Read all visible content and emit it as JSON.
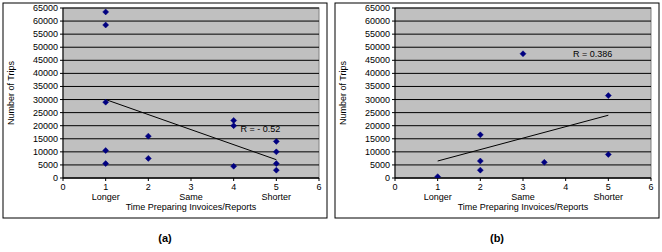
{
  "chart_data": [
    {
      "type": "scatter",
      "title": "(a)",
      "x_label": "Time Preparing Invoices/Reports",
      "y_label": "Number of Trips",
      "x": [
        1,
        1,
        1,
        1,
        1,
        2,
        2,
        4,
        4,
        4,
        5,
        5,
        5,
        5
      ],
      "values": [
        63500,
        58500,
        29000,
        10500,
        5500,
        16000,
        7500,
        22000,
        20000,
        4500,
        14000,
        10000,
        5500,
        3000
      ],
      "color": "#000080",
      "marker": "diamond",
      "trend": {
        "x": [
          1,
          5
        ],
        "values": [
          30000,
          7000
        ]
      },
      "annotation": "R = - 0.52",
      "xlim": [
        0,
        6
      ],
      "xticks": [
        0,
        1,
        2,
        3,
        4,
        5,
        6
      ],
      "x_category_labels": [
        {
          "value": 1,
          "label": "Longer"
        },
        {
          "value": 3,
          "label": "Same"
        },
        {
          "value": 5,
          "label": "Shorter"
        }
      ],
      "ylim": [
        0,
        65000
      ],
      "yticks": [
        0,
        5000,
        10000,
        15000,
        20000,
        25000,
        30000,
        35000,
        40000,
        45000,
        50000,
        55000,
        60000,
        65000
      ],
      "grid": true
    },
    {
      "type": "scatter",
      "title": "(b)",
      "x_label": "Time Preparing Invoices/Reports",
      "y_label": "Number of Trips",
      "x": [
        1,
        2,
        2,
        2,
        3,
        3.5,
        5,
        5
      ],
      "values": [
        500,
        16500,
        6500,
        3000,
        47500,
        6000,
        31500,
        9000
      ],
      "color": "#000080",
      "marker": "diamond",
      "trend": {
        "x": [
          1,
          5
        ],
        "values": [
          6500,
          24000
        ]
      },
      "annotation": "R = 0.386",
      "xlim": [
        0,
        6
      ],
      "xticks": [
        0,
        1,
        2,
        3,
        4,
        5,
        6
      ],
      "x_category_labels": [
        {
          "value": 1,
          "label": "Longer"
        },
        {
          "value": 3,
          "label": "Same"
        },
        {
          "value": 5,
          "label": "Shorter"
        }
      ],
      "ylim": [
        0,
        65000
      ],
      "yticks": [
        0,
        5000,
        10000,
        15000,
        20000,
        25000,
        30000,
        35000,
        40000,
        45000,
        50000,
        55000,
        60000,
        65000
      ],
      "grid": true
    }
  ]
}
